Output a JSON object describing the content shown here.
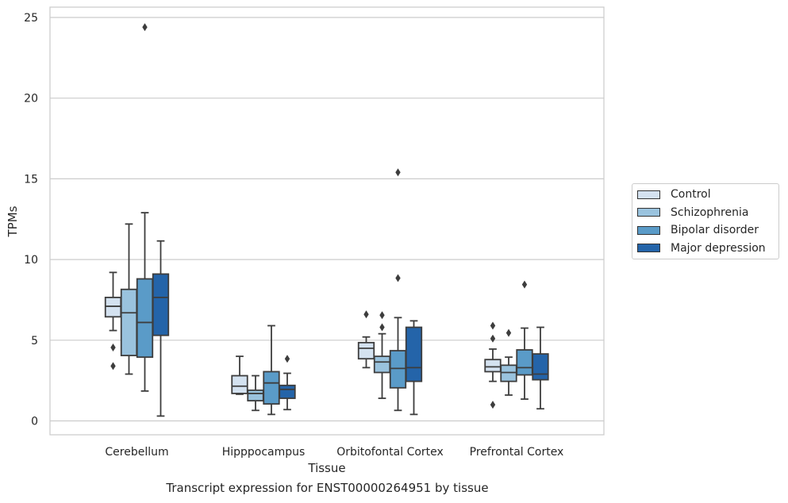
{
  "chart_data": {
    "type": "box",
    "caption": "Transcript expression for ENST00000264951 by tissue",
    "xlabel": "Tissue",
    "ylabel": "TPMs",
    "ylim": [
      -0.8,
      25.6
    ],
    "yticks": [
      0,
      5,
      10,
      15,
      20,
      25
    ],
    "categories": [
      "Cerebellum",
      "Hipppocampus",
      "Orbitofontal Cortex",
      "Prefrontal Cortex"
    ],
    "legend_position": "right",
    "grid": "horizontal",
    "series": [
      {
        "name": "Control",
        "color": "#d4e2f0",
        "boxes": [
          {
            "whislo": 5.6,
            "q1": 6.45,
            "med": 7.1,
            "q3": 7.65,
            "whishi": 9.2,
            "fliers": [
              4.55,
              3.4
            ]
          },
          {
            "whislo": 1.65,
            "q1": 1.7,
            "med": 2.15,
            "q3": 2.8,
            "whishi": 4.0,
            "fliers": []
          },
          {
            "whislo": 3.3,
            "q1": 3.85,
            "med": 4.5,
            "q3": 4.85,
            "whishi": 5.2,
            "fliers": [
              6.6
            ]
          },
          {
            "whislo": 2.45,
            "q1": 3.05,
            "med": 3.35,
            "q3": 3.8,
            "whishi": 4.45,
            "fliers": [
              5.9,
              5.1,
              1.0
            ]
          }
        ]
      },
      {
        "name": "Schizophrenia",
        "color": "#9ac3de",
        "boxes": [
          {
            "whislo": 2.9,
            "q1": 4.05,
            "med": 6.7,
            "q3": 8.15,
            "whishi": 12.2,
            "fliers": []
          },
          {
            "whislo": 0.65,
            "q1": 1.25,
            "med": 1.7,
            "q3": 1.9,
            "whishi": 2.8,
            "fliers": []
          },
          {
            "whislo": 1.4,
            "q1": 3.0,
            "med": 3.65,
            "q3": 4.0,
            "whishi": 5.4,
            "fliers": [
              6.55,
              5.8
            ]
          },
          {
            "whislo": 1.6,
            "q1": 2.45,
            "med": 3.0,
            "q3": 3.45,
            "whishi": 3.95,
            "fliers": [
              5.45
            ]
          }
        ]
      },
      {
        "name": "Bipolar disorder",
        "color": "#5a9bc8",
        "boxes": [
          {
            "whislo": 1.85,
            "q1": 3.95,
            "med": 6.1,
            "q3": 8.8,
            "whishi": 12.9,
            "fliers": [
              24.4
            ]
          },
          {
            "whislo": 0.4,
            "q1": 1.05,
            "med": 2.35,
            "q3": 3.05,
            "whishi": 5.9,
            "fliers": []
          },
          {
            "whislo": 0.65,
            "q1": 2.05,
            "med": 3.25,
            "q3": 4.35,
            "whishi": 6.4,
            "fliers": [
              15.4,
              8.85
            ]
          },
          {
            "whislo": 1.35,
            "q1": 2.85,
            "med": 3.3,
            "q3": 4.4,
            "whishi": 5.75,
            "fliers": [
              8.45
            ]
          }
        ]
      },
      {
        "name": "Major depression",
        "color": "#2464a9",
        "boxes": [
          {
            "whislo": 0.3,
            "q1": 5.3,
            "med": 7.65,
            "q3": 9.1,
            "whishi": 11.15,
            "fliers": []
          },
          {
            "whislo": 0.7,
            "q1": 1.4,
            "med": 1.95,
            "q3": 2.2,
            "whishi": 2.95,
            "fliers": [
              3.85
            ]
          },
          {
            "whislo": 0.4,
            "q1": 2.45,
            "med": 3.3,
            "q3": 5.8,
            "whishi": 6.2,
            "fliers": []
          },
          {
            "whislo": 0.75,
            "q1": 2.55,
            "med": 2.9,
            "q3": 4.15,
            "whishi": 5.8,
            "fliers": []
          }
        ]
      }
    ]
  }
}
